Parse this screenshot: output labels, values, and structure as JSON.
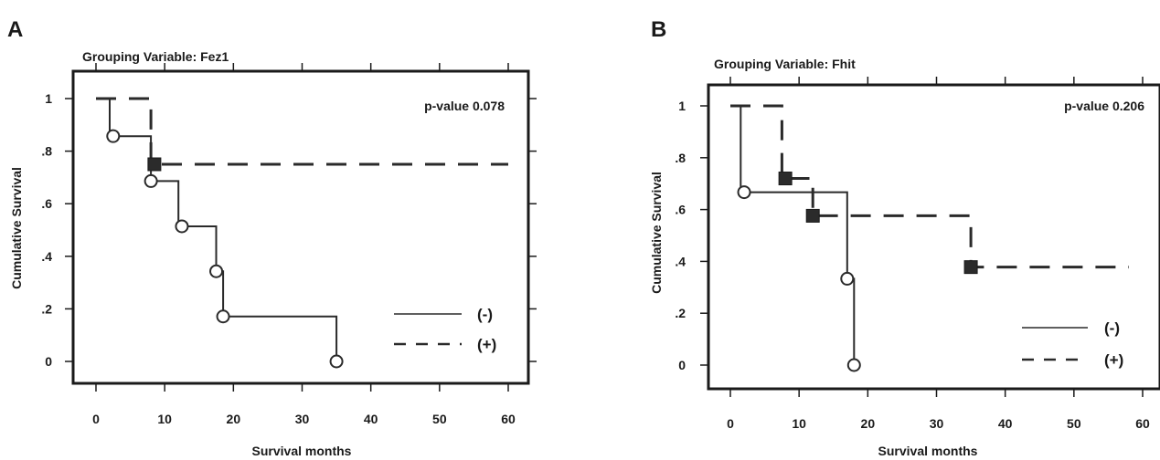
{
  "chart_data": [
    {
      "type": "line",
      "panel_label": "A",
      "title": "Grouping Variable: Fez1",
      "xlabel": "Survival months",
      "ylabel": "Cumulative  Survival",
      "xlim": [
        0,
        60
      ],
      "ylim": [
        0,
        1
      ],
      "x_ticks": [
        "0",
        "10",
        "20",
        "30",
        "40",
        "50",
        "60"
      ],
      "y_ticks": [
        "0",
        ".2",
        ".4",
        ".6",
        ".8",
        "1"
      ],
      "annotation": "p-value 0.078",
      "legend_position": "bottom-right",
      "series": [
        {
          "name": "(-)",
          "line_style": "solid",
          "marker": "open-circle",
          "steps": [
            [
              0,
              1
            ],
            [
              2,
              1
            ],
            [
              2,
              0.857
            ],
            [
              8,
              0.857
            ],
            [
              8,
              0.686
            ],
            [
              12,
              0.686
            ],
            [
              12,
              0.514
            ],
            [
              17.5,
              0.514
            ],
            [
              17.5,
              0.343
            ],
            [
              18.5,
              0.343
            ],
            [
              18.5,
              0.171
            ],
            [
              35,
              0.171
            ],
            [
              35,
              0
            ]
          ],
          "censored": [
            [
              2.5,
              0.857
            ],
            [
              8,
              0.686
            ],
            [
              12.5,
              0.514
            ],
            [
              17.5,
              0.343
            ],
            [
              18.5,
              0.171
            ],
            [
              35,
              0
            ]
          ]
        },
        {
          "name": "(+)",
          "line_style": "dashed",
          "marker": "filled-square",
          "steps": [
            [
              0,
              1
            ],
            [
              8,
              1
            ],
            [
              8,
              0.75
            ],
            [
              60,
              0.75
            ]
          ],
          "censored": [
            [
              8.5,
              0.75
            ]
          ]
        }
      ]
    },
    {
      "type": "line",
      "panel_label": "B",
      "title": "Grouping Variable: Fhit",
      "xlabel": "Survival months",
      "ylabel": "Cumulative  Survival",
      "xlim": [
        0,
        60
      ],
      "ylim": [
        0,
        1
      ],
      "x_ticks": [
        "0",
        "10",
        "20",
        "30",
        "40",
        "50",
        "60"
      ],
      "y_ticks": [
        "0",
        ".2",
        ".4",
        ".6",
        ".8",
        "1"
      ],
      "annotation": "p-value 0.206",
      "legend_position": "bottom-right",
      "series": [
        {
          "name": "(-)",
          "line_style": "solid",
          "marker": "open-circle",
          "steps": [
            [
              0,
              1
            ],
            [
              1.5,
              1
            ],
            [
              1.5,
              0.667
            ],
            [
              17,
              0.667
            ],
            [
              17,
              0.333
            ],
            [
              18,
              0.333
            ],
            [
              18,
              0
            ]
          ],
          "censored": [
            [
              2,
              0.667
            ],
            [
              17,
              0.333
            ],
            [
              18,
              0
            ]
          ]
        },
        {
          "name": "(+)",
          "line_style": "dashed",
          "marker": "filled-square",
          "steps": [
            [
              0,
              1
            ],
            [
              7.5,
              1
            ],
            [
              7.5,
              0.72
            ],
            [
              12,
              0.72
            ],
            [
              12,
              0.576
            ],
            [
              35,
              0.576
            ],
            [
              35,
              0.378
            ],
            [
              58,
              0.378
            ]
          ],
          "censored": [
            [
              8,
              0.72
            ],
            [
              12,
              0.576
            ],
            [
              35,
              0.378
            ]
          ]
        }
      ]
    }
  ]
}
